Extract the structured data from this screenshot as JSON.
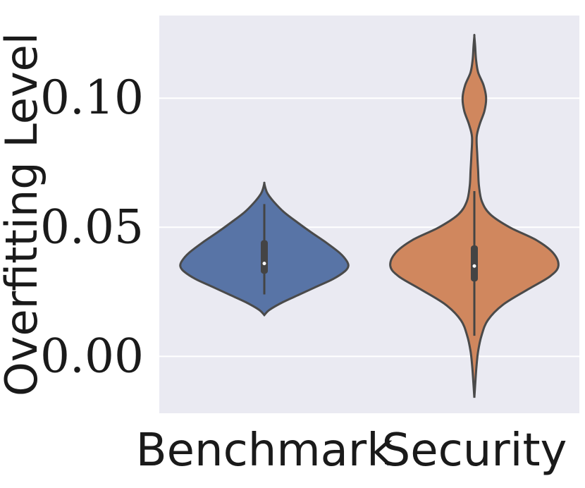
{
  "chart_data": {
    "type": "violin",
    "title": "",
    "xlabel": "",
    "ylabel": "Overfitting Level",
    "ylim": [
      -0.022,
      0.132
    ],
    "yticks": [
      0.0,
      0.05,
      0.1
    ],
    "ytick_labels": [
      "0.00",
      "0.05",
      "0.10"
    ],
    "grid": true,
    "categories": [
      "Benchmark",
      "Security"
    ],
    "series": [
      {
        "category": "Benchmark",
        "color": "#5874a6",
        "min": 0.016,
        "max": 0.067,
        "whisker_low": 0.024,
        "whisker_high": 0.059,
        "q1": 0.032,
        "q3": 0.045,
        "median": 0.036,
        "density": [
          [
            0.016,
            0.0
          ],
          [
            0.018,
            0.06
          ],
          [
            0.021,
            0.22
          ],
          [
            0.024,
            0.42
          ],
          [
            0.027,
            0.62
          ],
          [
            0.03,
            0.82
          ],
          [
            0.033,
            0.96
          ],
          [
            0.035,
            1.0
          ],
          [
            0.037,
            0.98
          ],
          [
            0.04,
            0.9
          ],
          [
            0.044,
            0.74
          ],
          [
            0.048,
            0.56
          ],
          [
            0.052,
            0.39
          ],
          [
            0.056,
            0.23
          ],
          [
            0.06,
            0.11
          ],
          [
            0.063,
            0.04
          ],
          [
            0.065,
            0.015
          ],
          [
            0.067,
            0.0
          ]
        ]
      },
      {
        "category": "Security",
        "color": "#d0875e",
        "min": -0.016,
        "max": 0.124,
        "whisker_low": 0.008,
        "whisker_high": 0.064,
        "q1": 0.029,
        "q3": 0.043,
        "median": 0.035,
        "density": [
          [
            -0.016,
            0.0
          ],
          [
            -0.01,
            0.012
          ],
          [
            -0.004,
            0.025
          ],
          [
            0.002,
            0.045
          ],
          [
            0.008,
            0.085
          ],
          [
            0.014,
            0.16
          ],
          [
            0.02,
            0.34
          ],
          [
            0.026,
            0.64
          ],
          [
            0.031,
            0.9
          ],
          [
            0.035,
            1.0
          ],
          [
            0.04,
            0.94
          ],
          [
            0.045,
            0.74
          ],
          [
            0.05,
            0.42
          ],
          [
            0.055,
            0.19
          ],
          [
            0.06,
            0.09
          ],
          [
            0.066,
            0.055
          ],
          [
            0.072,
            0.045
          ],
          [
            0.078,
            0.035
          ],
          [
            0.085,
            0.028
          ],
          [
            0.09,
            0.065
          ],
          [
            0.095,
            0.12
          ],
          [
            0.1,
            0.14
          ],
          [
            0.105,
            0.11
          ],
          [
            0.11,
            0.045
          ],
          [
            0.115,
            0.02
          ],
          [
            0.12,
            0.01
          ],
          [
            0.124,
            0.0
          ]
        ]
      }
    ]
  }
}
